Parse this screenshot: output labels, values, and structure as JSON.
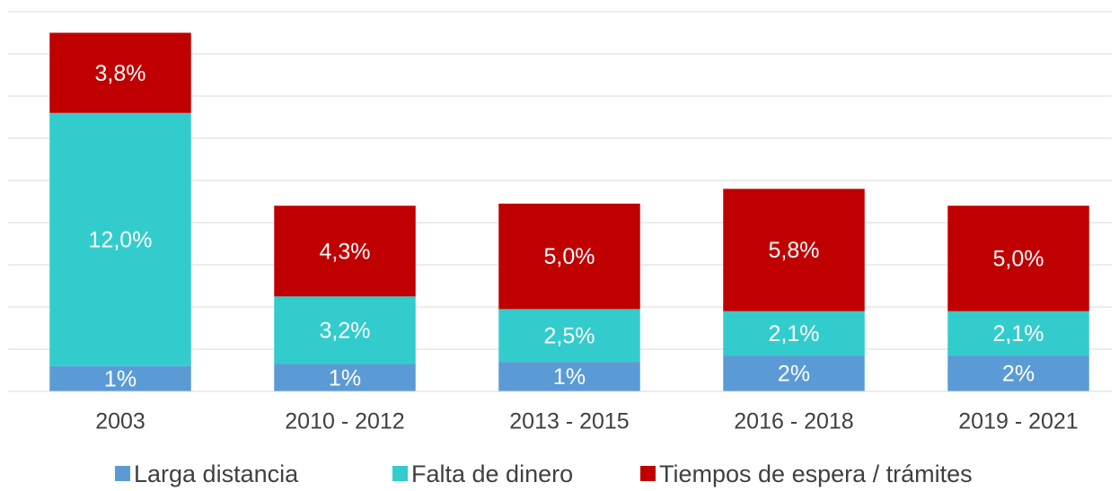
{
  "chart_data": {
    "type": "stacked_bar",
    "categories": [
      "2003",
      "2010 - 2012",
      "2013 - 2015",
      "2016 - 2018",
      "2019 - 2021"
    ],
    "series": [
      {
        "name": "Larga distancia",
        "color": "#5b9bd5",
        "values": [
          1.2,
          1.3,
          1.4,
          1.7,
          1.7
        ],
        "value_labels": [
          "1%",
          "1%",
          "1%",
          "2%",
          "2%"
        ]
      },
      {
        "name": "Falta de dinero",
        "color": "#33cccc",
        "values": [
          12.0,
          3.2,
          2.5,
          2.1,
          2.1
        ],
        "value_labels": [
          "12,0%",
          "3,2%",
          "2,5%",
          "2,1%",
          "2,1%"
        ]
      },
      {
        "name": "Tiempos de espera / trámites",
        "color": "#c00000",
        "values": [
          3.8,
          4.3,
          5.0,
          5.8,
          5.0
        ],
        "value_labels": [
          "3,8%",
          "4,3%",
          "5,0%",
          "5,8%",
          "5,0%"
        ]
      }
    ],
    "ylim": [
      0,
      18
    ],
    "yticks": [
      0,
      2,
      4,
      6,
      8,
      10,
      12,
      14,
      16,
      18
    ],
    "grid": true,
    "legend": "bottom"
  }
}
